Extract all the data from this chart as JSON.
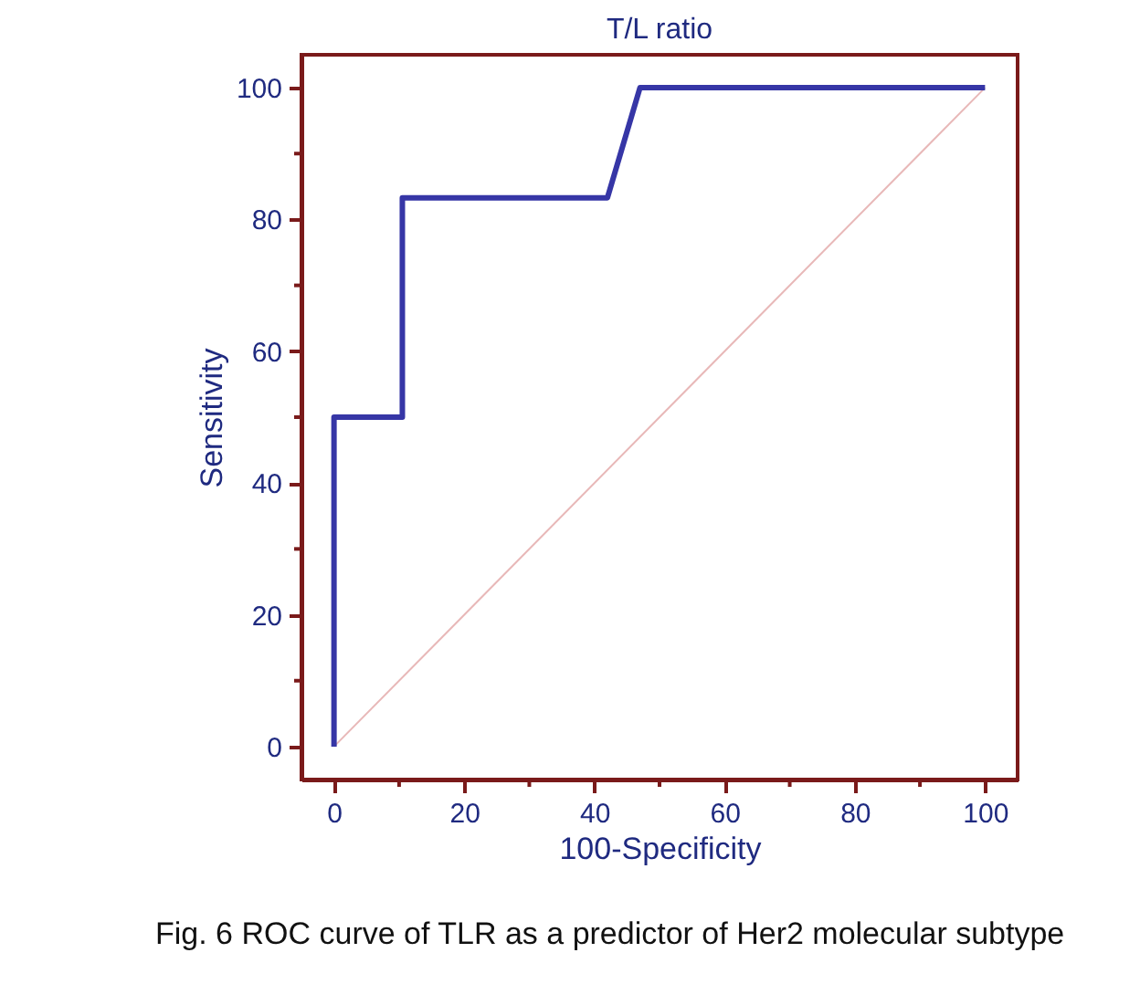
{
  "chart_data": {
    "type": "line",
    "title": "T/L ratio",
    "xlabel": "100-Specificity",
    "ylabel": "Sensitivity",
    "series": [
      {
        "color": "#e8b8b8",
        "x": [
          0,
          100
        ],
        "values": [
          0,
          100
        ]
      },
      {
        "color": "#3636a6",
        "x": [
          0,
          0,
          10.5,
          10.5,
          42,
          47,
          100
        ],
        "values": [
          0,
          50,
          50,
          83.3,
          83.3,
          100,
          100
        ]
      }
    ],
    "xlim": [
      -5,
      105
    ],
    "ylim": [
      -5,
      105
    ],
    "xticks": [
      0,
      {
        "value": 10,
        "label": null
      },
      20,
      {
        "value": 30,
        "label": null
      },
      40,
      {
        "value": 50,
        "label": null
      },
      60,
      {
        "value": 70,
        "label": null
      },
      80,
      {
        "value": 90,
        "label": null
      },
      100
    ],
    "yticks": [
      0,
      {
        "value": 10,
        "label": null
      },
      20,
      {
        "value": 30,
        "label": null
      },
      40,
      {
        "value": 50,
        "label": null
      },
      60,
      {
        "value": 70,
        "label": null
      },
      80,
      {
        "value": 90,
        "label": null
      },
      100
    ],
    "grid": false,
    "marker": "none",
    "line_style": "solid",
    "annotations": [
      "Fig. 6  ROC curve of TLR as a predictor of Her2 molecular subtype"
    ]
  }
}
